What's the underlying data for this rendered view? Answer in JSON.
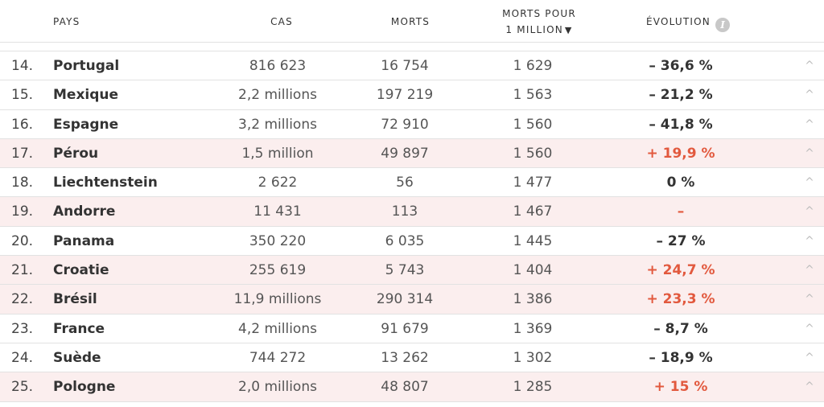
{
  "header": {
    "pays": "PAYS",
    "cas": "CAS",
    "morts": "MORTS",
    "mpm_line1": "MORTS POUR",
    "mpm_line2": "1 MILLION",
    "sort_glyph": "▼",
    "evolution": "ÉVOLUTION",
    "info_glyph": "i"
  },
  "rows": [
    {
      "rank": "14.",
      "country": "Portugal",
      "cases": "816 623",
      "deaths": "16 754",
      "per_million": "1 629",
      "evolution": "– 36,6 %",
      "trend": "down"
    },
    {
      "rank": "15.",
      "country": "Mexique",
      "cases": "2,2 millions",
      "deaths": "197 219",
      "per_million": "1 563",
      "evolution": "– 21,2 %",
      "trend": "down"
    },
    {
      "rank": "16.",
      "country": "Espagne",
      "cases": "3,2 millions",
      "deaths": "72 910",
      "per_million": "1 560",
      "evolution": "– 41,8 %",
      "trend": "down"
    },
    {
      "rank": "17.",
      "country": "Pérou",
      "cases": "1,5 million",
      "deaths": "49 897",
      "per_million": "1 560",
      "evolution": "+ 19,9 %",
      "trend": "up"
    },
    {
      "rank": "18.",
      "country": "Liechtenstein",
      "cases": "2 622",
      "deaths": "56",
      "per_million": "1 477",
      "evolution": "0 %",
      "trend": "flat"
    },
    {
      "rank": "19.",
      "country": "Andorre",
      "cases": "11 431",
      "deaths": "113",
      "per_million": "1 467",
      "evolution": "–",
      "trend": "up"
    },
    {
      "rank": "20.",
      "country": "Panama",
      "cases": "350 220",
      "deaths": "6 035",
      "per_million": "1 445",
      "evolution": "– 27 %",
      "trend": "down"
    },
    {
      "rank": "21.",
      "country": "Croatie",
      "cases": "255 619",
      "deaths": "5 743",
      "per_million": "1 404",
      "evolution": "+ 24,7 %",
      "trend": "up"
    },
    {
      "rank": "22.",
      "country": "Brésil",
      "cases": "11,9 millions",
      "deaths": "290 314",
      "per_million": "1 386",
      "evolution": "+ 23,3 %",
      "trend": "up"
    },
    {
      "rank": "23.",
      "country": "France",
      "cases": "4,2 millions",
      "deaths": "91 679",
      "per_million": "1 369",
      "evolution": "– 8,7 %",
      "trend": "down"
    },
    {
      "rank": "24.",
      "country": "Suède",
      "cases": "744 272",
      "deaths": "13 262",
      "per_million": "1 302",
      "evolution": "– 18,9 %",
      "trend": "down"
    },
    {
      "rank": "25.",
      "country": "Pologne",
      "cases": "2,0 millions",
      "deaths": "48 807",
      "per_million": "1 285",
      "evolution": "+ 15 %",
      "trend": "up"
    }
  ],
  "chevron_glyph": "^",
  "colors": {
    "increase": "#e2593e",
    "increase_row_bg": "#fbeeee"
  }
}
